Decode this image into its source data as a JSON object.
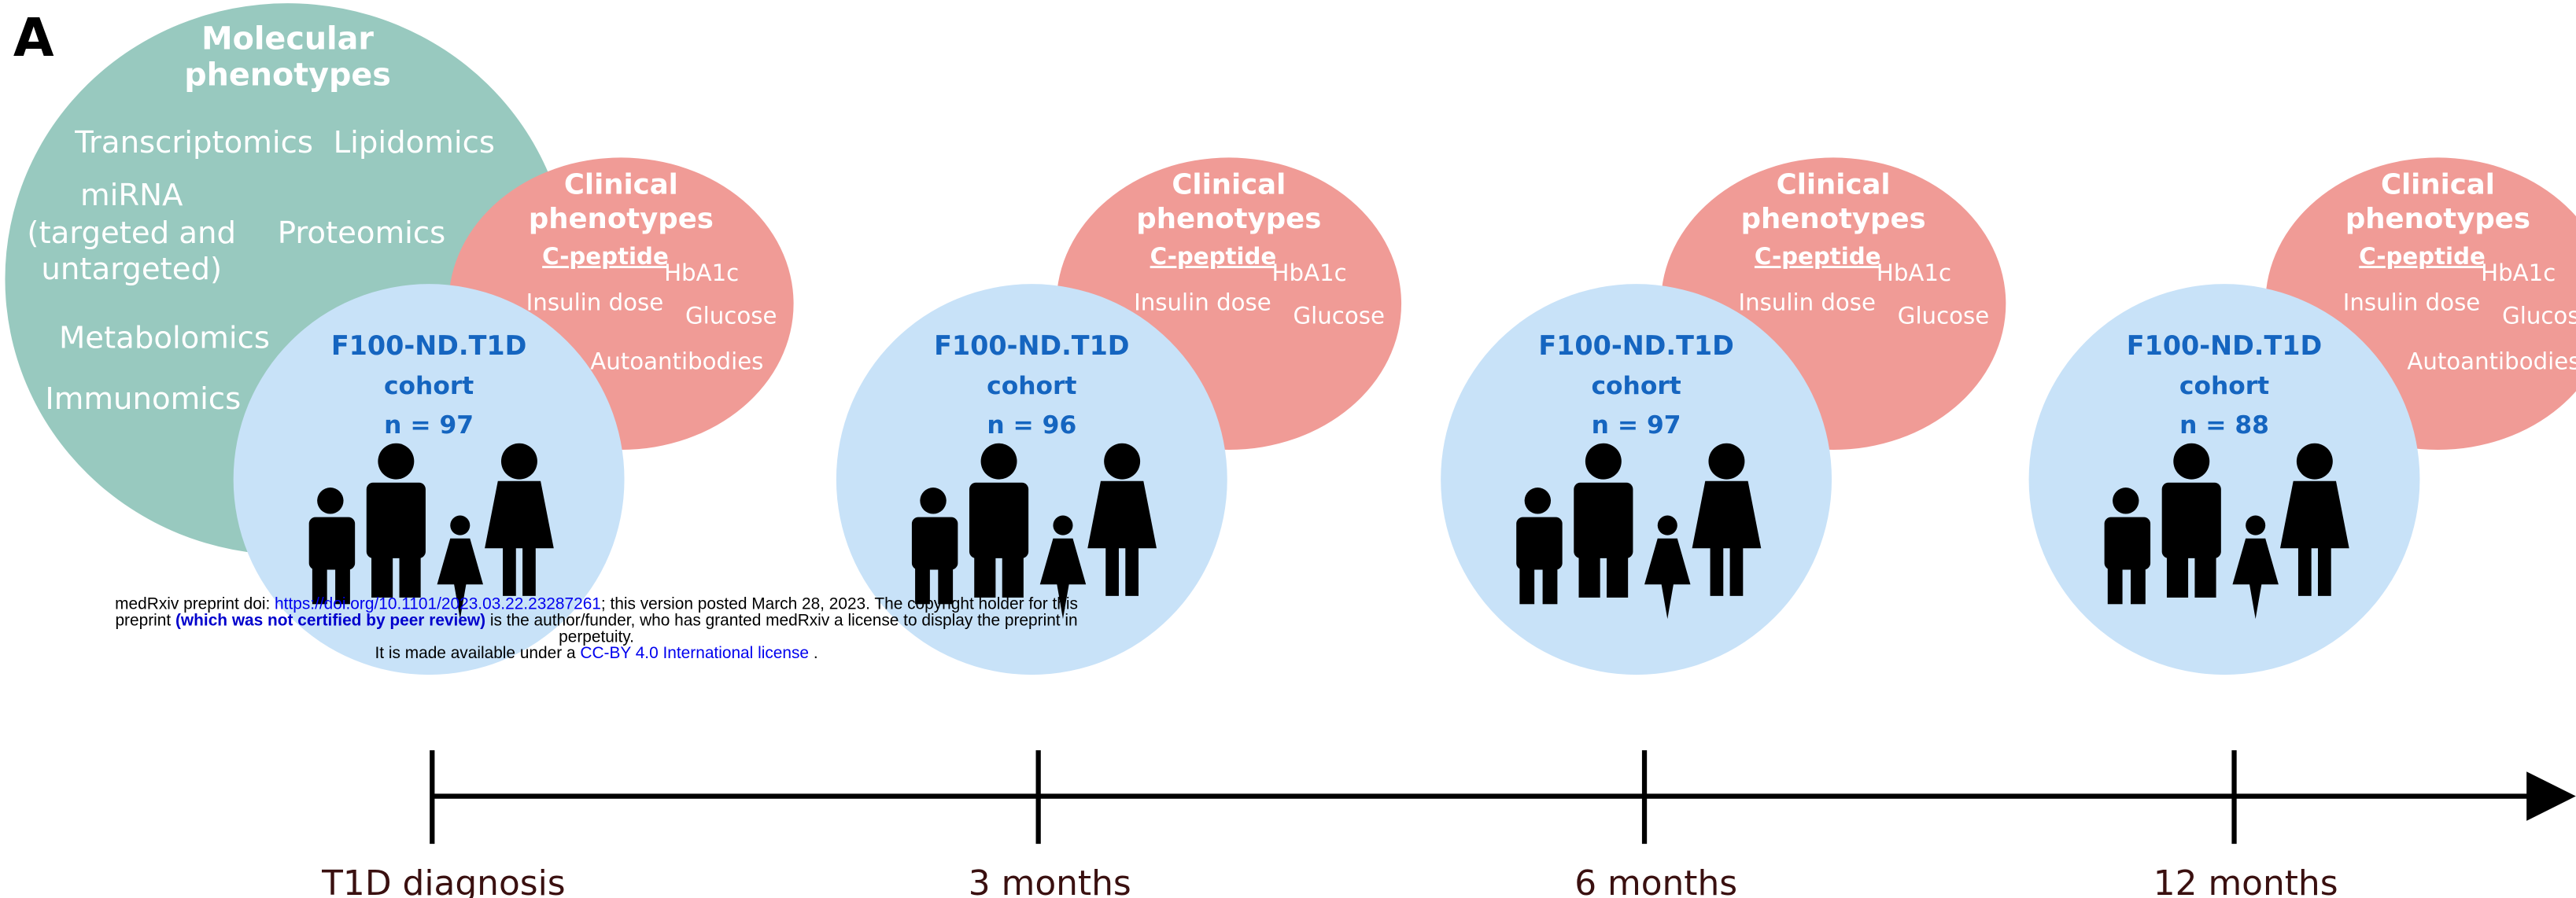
{
  "panel_label": "A",
  "molecular": {
    "title": [
      "Molecular",
      "phenotypes"
    ],
    "items": [
      "Transcriptomics",
      "Lipidomics",
      "miRNA",
      "(targeted and",
      "untargeted)",
      "Proteomics",
      "Metabolomics",
      "Immunomics"
    ]
  },
  "timepoints": [
    {
      "time_label": "T1D diagnosis",
      "clinical": {
        "title": [
          "Clinical",
          "phenotypes"
        ],
        "items": [
          "C-peptide",
          "HbA1c",
          "Insulin dose",
          "Glucose",
          "Autoantibodies"
        ]
      },
      "cohort": {
        "name": "F100-ND.T1D",
        "label": "cohort",
        "n": "n = 97"
      }
    },
    {
      "time_label": "3 months",
      "clinical": {
        "title": [
          "Clinical",
          "phenotypes"
        ],
        "items": [
          "C-peptide",
          "HbA1c",
          "Insulin dose",
          "Glucose"
        ]
      },
      "cohort": {
        "name": "F100-ND.T1D",
        "label": "cohort",
        "n": "n = 96"
      }
    },
    {
      "time_label": "6 months",
      "clinical": {
        "title": [
          "Clinical",
          "phenotypes"
        ],
        "items": [
          "C-peptide",
          "HbA1c",
          "Insulin dose",
          "Glucose"
        ]
      },
      "cohort": {
        "name": "F100-ND.T1D",
        "label": "cohort",
        "n": "n = 97"
      }
    },
    {
      "time_label": "12 months",
      "clinical": {
        "title": [
          "Clinical",
          "phenotypes"
        ],
        "items": [
          "C-peptide",
          "HbA1c",
          "Insulin dose",
          "Glucose",
          "Autoantibodies"
        ]
      },
      "cohort": {
        "name": "F100-ND.T1D",
        "label": "cohort",
        "n": "n = 88"
      }
    }
  ],
  "watermark": {
    "line1": [
      "medRxiv preprint doi: ",
      "https://doi.org/10.1101/2023.03.22.23287261",
      "; this version posted March 28, 2023. The copyright holder for this"
    ],
    "line2": [
      "preprint ",
      "(which was not certified by peer review)",
      " is the author/funder, who has granted medRxiv a license to display the preprint in"
    ],
    "line3": "perpetuity.",
    "line4": [
      "It is made available under a ",
      "CC-BY 4.0 International license",
      " ."
    ]
  }
}
